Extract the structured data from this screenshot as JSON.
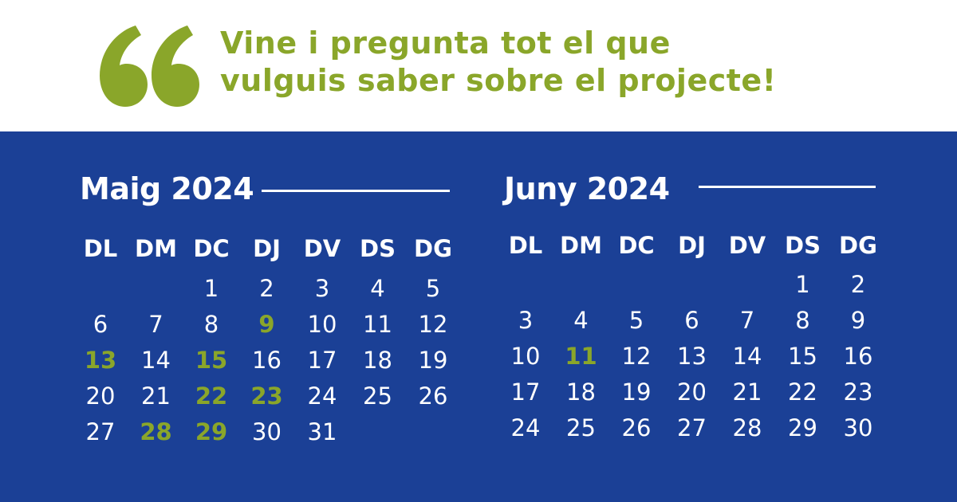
{
  "header": {
    "quote_icon": "left-double-quote-icon",
    "tagline_line1": "Vine i pregunta tot el que",
    "tagline_line2": "vulguis saber sobre el projecte!"
  },
  "colors": {
    "accent_green": "#8aa62a",
    "panel_blue": "#1b4096",
    "text_white": "#ffffff"
  },
  "weekdays": [
    "DL",
    "DM",
    "DC",
    "DJ",
    "DV",
    "DS",
    "DG"
  ],
  "calendars": [
    {
      "title": "Maig 2024",
      "first_weekday_index": 2,
      "days_in_month": 31,
      "highlighted_days": [
        9,
        13,
        15,
        22,
        23,
        28,
        29
      ]
    },
    {
      "title": "Juny 2024",
      "first_weekday_index": 5,
      "days_in_month": 30,
      "highlighted_days": [
        11
      ]
    }
  ]
}
